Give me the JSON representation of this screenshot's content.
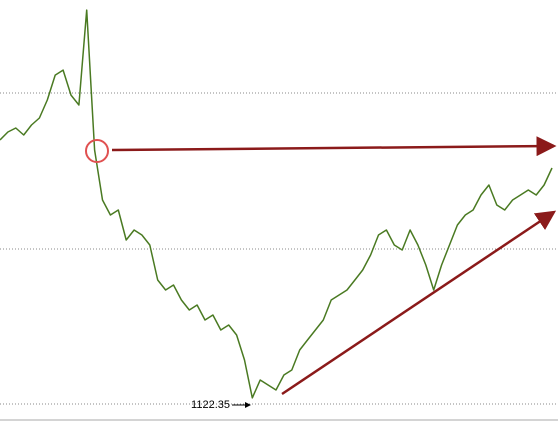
{
  "chart_data": {
    "type": "line",
    "series": [
      {
        "color": "#4a7a22",
        "values": [
          1155.37,
          1156.4,
          1156.91,
          1156.01,
          1157.29,
          1158.19,
          1160.49,
          1163.69,
          1164.33,
          1161.13,
          1159.85,
          1172.01,
          1154.09,
          1147.69,
          1145.77,
          1146.41,
          1142.57,
          1143.85,
          1143.21,
          1141.93,
          1137.45,
          1136.17,
          1136.81,
          1134.89,
          1133.61,
          1134.25,
          1132.33,
          1132.97,
          1131.05,
          1131.69,
          1130.41,
          1127.21,
          1122.35,
          1124.65,
          1124.01,
          1123.37,
          1125.29,
          1125.93,
          1128.49,
          1129.77,
          1131.05,
          1132.33,
          1134.89,
          1135.53,
          1136.17,
          1137.45,
          1138.73,
          1140.65,
          1143.21,
          1143.85,
          1141.93,
          1141.29,
          1143.85,
          1141.93,
          1139.37,
          1136.17,
          1139.37,
          1141.93,
          1144.49,
          1145.77,
          1146.41,
          1148.33,
          1149.61,
          1147.05,
          1146.41,
          1147.69,
          1148.33,
          1148.97,
          1148.33,
          1149.61,
          1151.79
        ]
      }
    ],
    "ylim": [
      1118.5,
      1173.3
    ],
    "low": 1122.35
  }
}
